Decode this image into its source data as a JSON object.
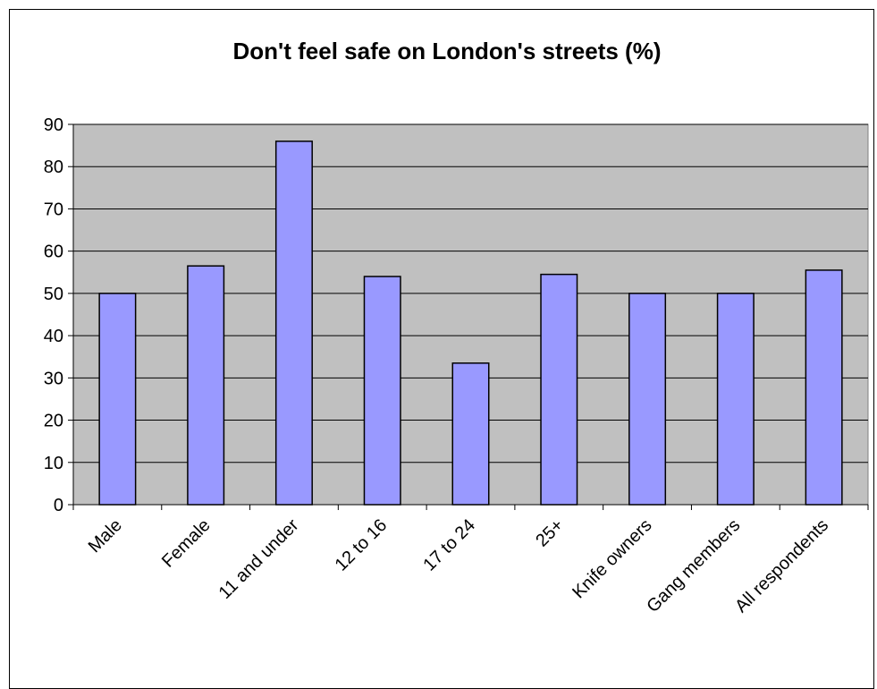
{
  "chart_data": {
    "type": "bar",
    "title": "Don't feel safe on London's streets (%)",
    "xlabel": "",
    "ylabel": "",
    "categories": [
      "Male",
      "Female",
      "11 and under",
      "12 to 16",
      "17 to 24",
      "25+",
      "Knife owners",
      "Gang members",
      "All respondents"
    ],
    "values": [
      50,
      56.5,
      86,
      54,
      33.5,
      54.5,
      50,
      50,
      55.5
    ],
    "ylim": [
      0,
      90
    ],
    "yticks": [
      "0",
      "10",
      "20",
      "30",
      "40",
      "50",
      "60",
      "70",
      "80",
      "90"
    ],
    "grid": true,
    "legend": "none",
    "colors": {
      "bar_fill": "#9999ff",
      "bar_stroke": "#000000",
      "plot_background": "#c0c0c0",
      "gridline": "#000000"
    }
  }
}
